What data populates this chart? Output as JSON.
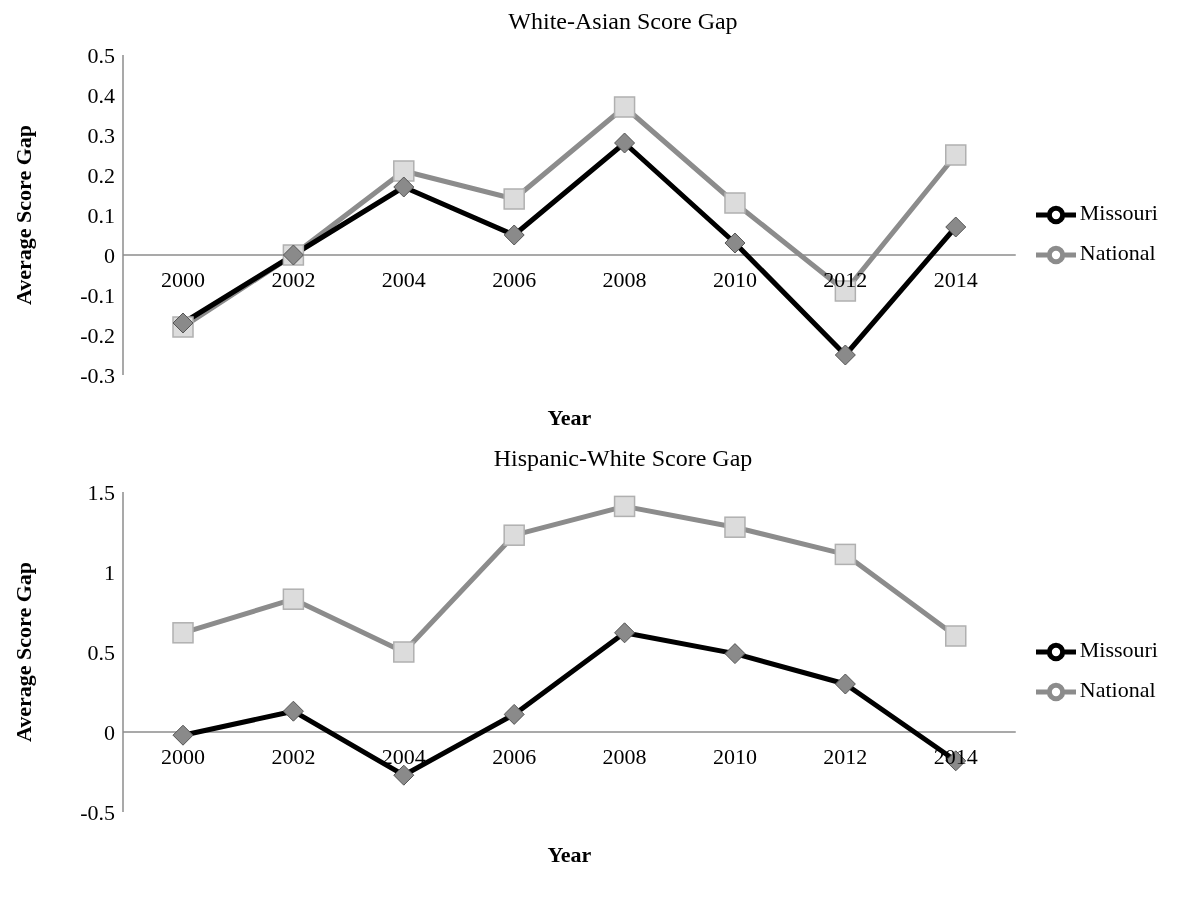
{
  "chart_data": [
    {
      "type": "line",
      "title": "White-Asian Score Gap",
      "xlabel": "Year",
      "ylabel": "Average Score Gap",
      "categories": [
        "2000",
        "2002",
        "2004",
        "2006",
        "2008",
        "2010",
        "2012",
        "2014"
      ],
      "series": [
        {
          "name": "National",
          "color": "#8c8c8c",
          "marker": "square",
          "values": [
            -0.18,
            0,
            0.21,
            0.14,
            0.37,
            0.13,
            -0.09,
            0.25
          ]
        },
        {
          "name": "Missouri",
          "color": "#000000",
          "marker": "diamond",
          "values": [
            -0.17,
            0,
            0.17,
            0.05,
            0.28,
            0.03,
            -0.25,
            0.07
          ]
        }
      ],
      "ylim": [
        -0.3,
        0.5
      ],
      "yticks": [
        -0.3,
        -0.2,
        -0.1,
        0,
        0.1,
        0.2,
        0.3,
        0.4,
        0.5
      ],
      "grid": false,
      "legend": "right"
    },
    {
      "type": "line",
      "title": "Hispanic-White Score Gap",
      "xlabel": "Year",
      "ylabel": "Average Score Gap",
      "categories": [
        "2000",
        "2002",
        "2004",
        "2006",
        "2008",
        "2010",
        "2012",
        "2014"
      ],
      "series": [
        {
          "name": "National",
          "color": "#8c8c8c",
          "marker": "square",
          "values": [
            0.62,
            0.83,
            0.5,
            1.23,
            1.41,
            1.28,
            1.11,
            0.6
          ]
        },
        {
          "name": "Missouri",
          "color": "#000000",
          "marker": "diamond",
          "values": [
            -0.02,
            0.13,
            -0.27,
            0.11,
            0.62,
            0.49,
            0.3,
            -0.18
          ]
        }
      ],
      "ylim": [
        -0.5,
        1.5
      ],
      "yticks": [
        -0.5,
        0,
        0.5,
        1,
        1.5
      ],
      "grid": false,
      "legend": "right"
    }
  ]
}
